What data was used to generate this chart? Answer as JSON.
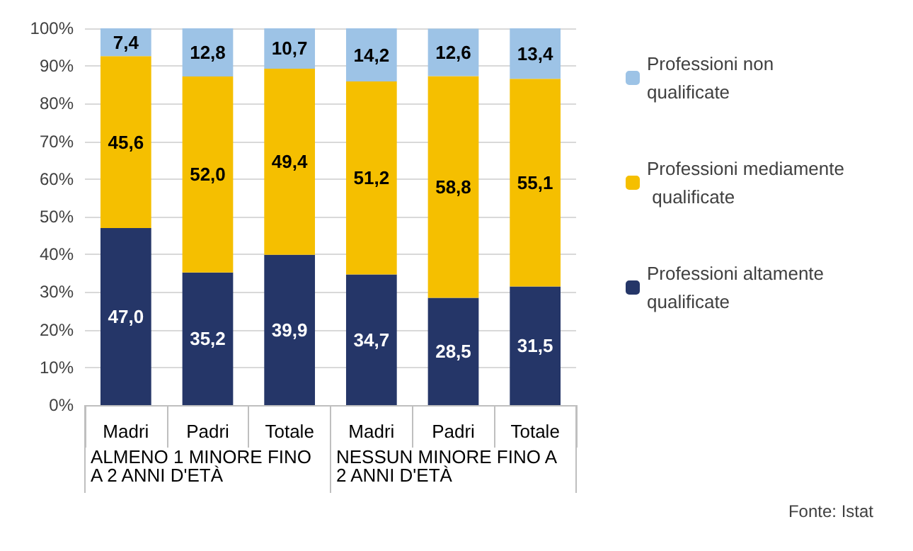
{
  "chart_data": {
    "type": "bar",
    "stacked": true,
    "categories": [
      "Madri",
      "Padri",
      "Totale",
      "Madri",
      "Padri",
      "Totale"
    ],
    "series": [
      {
        "name": "Professioni altamente qualificate",
        "color": "#253668",
        "values": [
          47.0,
          35.2,
          39.9,
          34.7,
          28.5,
          31.5
        ],
        "value_labels": [
          "47,0",
          "35,2",
          "39,9",
          "34,7",
          "28,5",
          "31,5"
        ]
      },
      {
        "name": "Professioni mediamente qualificate",
        "color": "#f5bf00",
        "values": [
          45.6,
          52.0,
          49.4,
          51.2,
          58.8,
          55.1
        ],
        "value_labels": [
          "45,6",
          "52,0",
          "49,4",
          "51,2",
          "58,8",
          "55,1"
        ]
      },
      {
        "name": "Professioni non qualificate",
        "color": "#9dc3e6",
        "values": [
          7.4,
          12.8,
          10.7,
          14.2,
          12.6,
          13.4
        ],
        "value_labels": [
          "7,4",
          "12,8",
          "10,7",
          "14,2",
          "12,6",
          "13,4"
        ]
      }
    ],
    "ylim": [
      0,
      100
    ],
    "yticks": [
      {
        "value": 0,
        "label": "0%"
      },
      {
        "value": 10,
        "label": "10%"
      },
      {
        "value": 20,
        "label": "20%"
      },
      {
        "value": 30,
        "label": "30%"
      },
      {
        "value": 40,
        "label": "40%"
      },
      {
        "value": 50,
        "label": "50%"
      },
      {
        "value": 60,
        "label": "60%"
      },
      {
        "value": 70,
        "label": "70%"
      },
      {
        "value": 80,
        "label": "80%"
      },
      {
        "value": 90,
        "label": "90%"
      },
      {
        "value": 100,
        "label": "100%"
      }
    ],
    "grid": "y",
    "legend": "right",
    "annotations": [
      "ALMENO 1 MINORE FINO A 2 ANNI D'ETÀ",
      "NESSUN MINORE FINO A 2 ANNI D'ETÀ",
      "Fonte: Istat"
    ]
  }
}
